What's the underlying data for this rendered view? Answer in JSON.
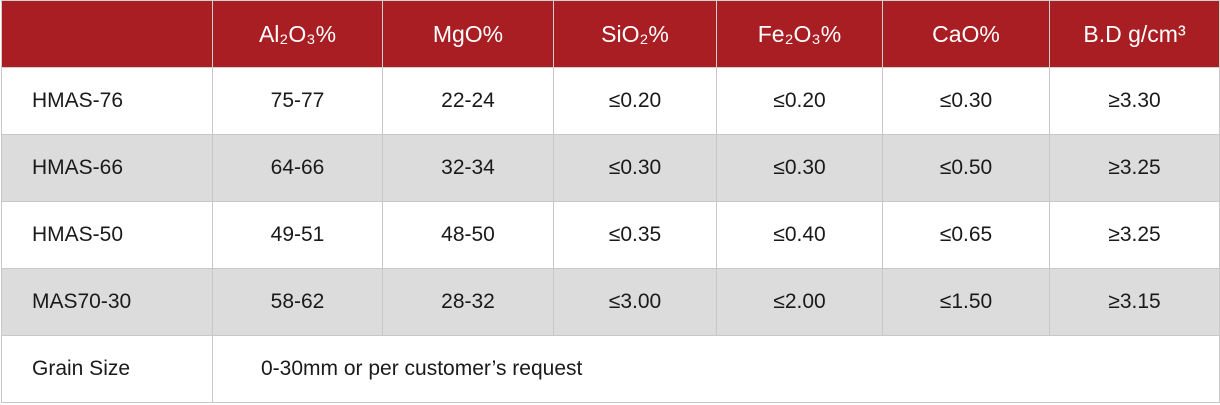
{
  "table": {
    "header": [
      "Al₂O₃%",
      "MgO%",
      "SiO₂%",
      "Fe₂O₃%",
      "CaO%",
      "B.D g/cm³"
    ],
    "rows": [
      [
        "HMAS-76",
        "75-77",
        "22-24",
        "≤0.20",
        "≤0.20",
        "≤0.30",
        "≥3.30"
      ],
      [
        "HMAS-66",
        "64-66",
        "32-34",
        "≤0.30",
        "≤0.30",
        "≤0.50",
        "≥3.25"
      ],
      [
        "HMAS-50",
        "49-51",
        "48-50",
        "≤0.35",
        "≤0.40",
        "≤0.65",
        "≥3.25"
      ],
      [
        "MAS70-30",
        "58-62",
        "28-32",
        "≤3.00",
        "≤2.00",
        "≤1.50",
        "≥3.15"
      ]
    ],
    "footer": {
      "label": "Grain Size",
      "text": "0-30mm or per customer’s request"
    }
  }
}
